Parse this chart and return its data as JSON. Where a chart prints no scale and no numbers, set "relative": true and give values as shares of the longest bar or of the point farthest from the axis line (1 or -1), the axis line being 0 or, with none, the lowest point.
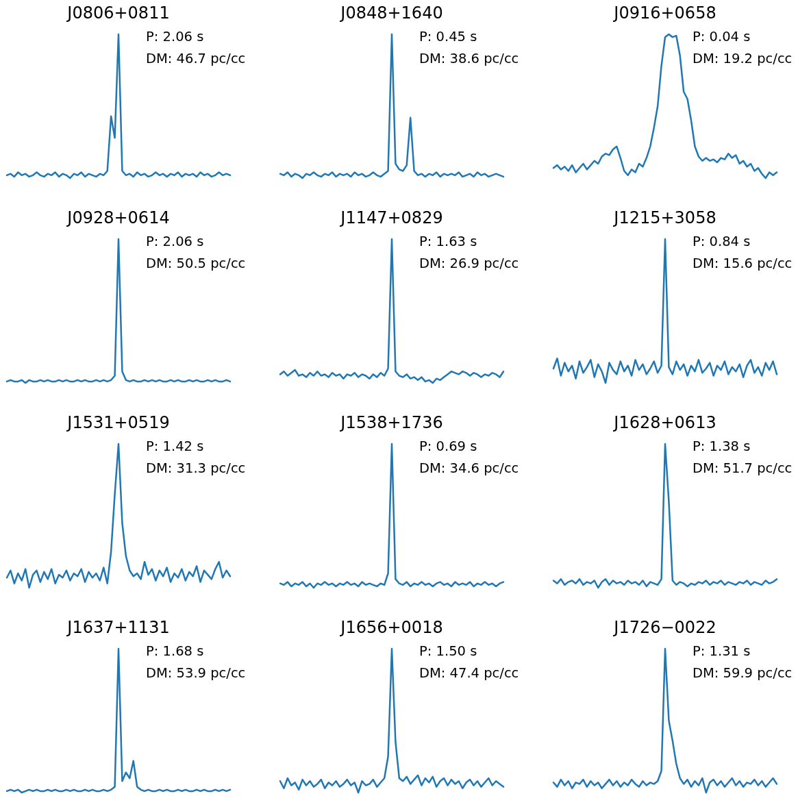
{
  "chart_data": [
    {
      "type": "line",
      "title": "J0806+0811",
      "annotations": [
        "P: 2.06 s",
        "DM: 46.7 pc/cc"
      ],
      "relative": true,
      "color": "#1f77b4",
      "categories": [
        null,
        null,
        null,
        null,
        null,
        null,
        null,
        null,
        null,
        null,
        null,
        null,
        null,
        null,
        null,
        null,
        null,
        null,
        null,
        null,
        null,
        null,
        null,
        null,
        null,
        null,
        null,
        null,
        null,
        null,
        null,
        null,
        null,
        null,
        null,
        null,
        null,
        null,
        null,
        null,
        null,
        null,
        null,
        null,
        null,
        null,
        null,
        null,
        null,
        null,
        null,
        null,
        null,
        null,
        null,
        null,
        null,
        null,
        null,
        null,
        null
      ],
      "values": [
        0.02,
        0.03,
        0.01,
        0.04,
        0.02,
        0.03,
        0.01,
        0.02,
        0.04,
        0.02,
        0.01,
        0.03,
        0.02,
        0.04,
        0.01,
        0.03,
        0.02,
        0.0,
        0.03,
        0.02,
        0.04,
        0.01,
        0.03,
        0.02,
        0.01,
        0.03,
        0.02,
        0.05,
        0.43,
        0.28,
        1,
        0.05,
        0.02,
        0.03,
        0.01,
        0.04,
        0.02,
        0.03,
        0.01,
        0.02,
        0.04,
        0.02,
        0.03,
        0.01,
        0.03,
        0.02,
        0.04,
        0.01,
        0.03,
        0.02,
        0.03,
        0.01,
        0.04,
        0.02,
        0.03,
        0.01,
        0.02,
        0.04,
        0.02,
        0.03,
        0.02
      ]
    },
    {
      "type": "line",
      "title": "J0848+1640",
      "annotations": [
        "P: 0.45 s",
        "DM: 38.6 pc/cc"
      ],
      "relative": true,
      "color": "#1f77b4",
      "categories": [
        null,
        null,
        null,
        null,
        null,
        null,
        null,
        null,
        null,
        null,
        null,
        null,
        null,
        null,
        null,
        null,
        null,
        null,
        null,
        null,
        null,
        null,
        null,
        null,
        null,
        null,
        null,
        null,
        null,
        null,
        null,
        null,
        null,
        null,
        null,
        null,
        null,
        null,
        null,
        null,
        null,
        null,
        null,
        null,
        null,
        null,
        null,
        null,
        null,
        null,
        null,
        null,
        null,
        null,
        null,
        null,
        null,
        null,
        null,
        null,
        null
      ],
      "values": [
        0.03,
        0.02,
        0.04,
        0.01,
        0.03,
        0.02,
        0.0,
        0.03,
        0.02,
        0.04,
        0.02,
        0.01,
        0.03,
        0.02,
        0.04,
        0.01,
        0.03,
        0.02,
        0.03,
        0.01,
        0.04,
        0.02,
        0.03,
        0.01,
        0.02,
        0.04,
        0.02,
        0.01,
        0.03,
        0.05,
        1,
        0.1,
        0.06,
        0.05,
        0.09,
        0.42,
        0.05,
        0.02,
        0.03,
        0.01,
        0.03,
        0.02,
        0.04,
        0.01,
        0.03,
        0.02,
        0.03,
        0.02,
        0.04,
        0.01,
        0.02,
        0.03,
        0.01,
        0.04,
        0.02,
        0.03,
        0.01,
        0.02,
        0.03,
        0.02,
        0.01
      ]
    },
    {
      "type": "line",
      "title": "J0916+0658",
      "annotations": [
        "P: 0.04 s",
        "DM: 19.2 pc/cc"
      ],
      "relative": true,
      "color": "#1f77b4",
      "categories": [
        null,
        null,
        null,
        null,
        null,
        null,
        null,
        null,
        null,
        null,
        null,
        null,
        null,
        null,
        null,
        null,
        null,
        null,
        null,
        null,
        null,
        null,
        null,
        null,
        null,
        null,
        null,
        null,
        null,
        null,
        null,
        null,
        null,
        null,
        null,
        null,
        null,
        null,
        null,
        null,
        null,
        null,
        null,
        null,
        null,
        null,
        null,
        null,
        null,
        null,
        null,
        null,
        null,
        null,
        null,
        null,
        null,
        null,
        null,
        null,
        null
      ],
      "values": [
        0.07,
        0.09,
        0.06,
        0.08,
        0.05,
        0.09,
        0.04,
        0.07,
        0.1,
        0.06,
        0.09,
        0.12,
        0.1,
        0.15,
        0.17,
        0.16,
        0.2,
        0.22,
        0.14,
        0.05,
        0.02,
        0.06,
        0.04,
        0.1,
        0.08,
        0.14,
        0.22,
        0.35,
        0.5,
        0.78,
        0.98,
        1,
        0.98,
        0.99,
        0.85,
        0.6,
        0.55,
        0.4,
        0.22,
        0.15,
        0.12,
        0.14,
        0.12,
        0.13,
        0.11,
        0.14,
        0.13,
        0.17,
        0.14,
        0.16,
        0.1,
        0.12,
        0.08,
        0.1,
        0.05,
        0.07,
        0.03,
        0.0,
        0.04,
        0.02,
        0.04
      ]
    },
    {
      "type": "line",
      "title": "J0928+0614",
      "annotations": [
        "P: 2.06 s",
        "DM: 50.5 pc/cc"
      ],
      "relative": true,
      "color": "#1f77b4",
      "categories": [
        null,
        null,
        null,
        null,
        null,
        null,
        null,
        null,
        null,
        null,
        null,
        null,
        null,
        null,
        null,
        null,
        null,
        null,
        null,
        null,
        null,
        null,
        null,
        null,
        null,
        null,
        null,
        null,
        null,
        null,
        null,
        null,
        null,
        null,
        null,
        null,
        null,
        null,
        null,
        null,
        null,
        null,
        null,
        null,
        null,
        null,
        null,
        null,
        null,
        null,
        null,
        null,
        null,
        null,
        null,
        null,
        null,
        null,
        null,
        null,
        null
      ],
      "values": [
        0.01,
        0.02,
        0.01,
        0.01,
        0.02,
        0.0,
        0.02,
        0.01,
        0.01,
        0.02,
        0.01,
        0.02,
        0.01,
        0.01,
        0.02,
        0.01,
        0.02,
        0.01,
        0.01,
        0.02,
        0.01,
        0.02,
        0.01,
        0.01,
        0.02,
        0.01,
        0.02,
        0.01,
        0.02,
        0.05,
        1,
        0.08,
        0.02,
        0.01,
        0.02,
        0.01,
        0.01,
        0.02,
        0.01,
        0.02,
        0.01,
        0.02,
        0.01,
        0.01,
        0.02,
        0.01,
        0.02,
        0.01,
        0.01,
        0.02,
        0.01,
        0.02,
        0.01,
        0.01,
        0.02,
        0.01,
        0.02,
        0.01,
        0.01,
        0.02,
        0.01
      ]
    },
    {
      "type": "line",
      "title": "J1147+0829",
      "annotations": [
        "P: 1.63 s",
        "DM: 26.9 pc/cc"
      ],
      "relative": true,
      "color": "#1f77b4",
      "categories": [
        null,
        null,
        null,
        null,
        null,
        null,
        null,
        null,
        null,
        null,
        null,
        null,
        null,
        null,
        null,
        null,
        null,
        null,
        null,
        null,
        null,
        null,
        null,
        null,
        null,
        null,
        null,
        null,
        null,
        null,
        null,
        null,
        null,
        null,
        null,
        null,
        null,
        null,
        null,
        null,
        null,
        null,
        null,
        null,
        null,
        null,
        null,
        null,
        null,
        null,
        null,
        null,
        null,
        null,
        null,
        null,
        null,
        null,
        null,
        null,
        null
      ],
      "values": [
        0.06,
        0.08,
        0.05,
        0.07,
        0.09,
        0.05,
        0.06,
        0.04,
        0.07,
        0.05,
        0.08,
        0.05,
        0.06,
        0.04,
        0.07,
        0.05,
        0.06,
        0.03,
        0.06,
        0.05,
        0.07,
        0.04,
        0.06,
        0.05,
        0.03,
        0.06,
        0.04,
        0.07,
        0.05,
        0.1,
        1,
        0.08,
        0.05,
        0.04,
        0.06,
        0.03,
        0.04,
        0.02,
        0.04,
        0.01,
        0.02,
        0.0,
        0.03,
        0.02,
        0.04,
        0.06,
        0.08,
        0.07,
        0.06,
        0.08,
        0.07,
        0.05,
        0.07,
        0.06,
        0.04,
        0.06,
        0.05,
        0.07,
        0.06,
        0.04,
        0.08
      ]
    },
    {
      "type": "line",
      "title": "J1215+3058",
      "annotations": [
        "P: 0.84 s",
        "DM: 15.6 pc/cc"
      ],
      "relative": true,
      "color": "#1f77b4",
      "categories": [
        null,
        null,
        null,
        null,
        null,
        null,
        null,
        null,
        null,
        null,
        null,
        null,
        null,
        null,
        null,
        null,
        null,
        null,
        null,
        null,
        null,
        null,
        null,
        null,
        null,
        null,
        null,
        null,
        null,
        null,
        null,
        null,
        null,
        null,
        null,
        null,
        null,
        null,
        null,
        null,
        null,
        null,
        null,
        null,
        null,
        null,
        null,
        null,
        null,
        null,
        null,
        null,
        null,
        null,
        null,
        null,
        null,
        null,
        null,
        null,
        null
      ],
      "values": [
        0.1,
        0.17,
        0.05,
        0.14,
        0.08,
        0.12,
        0.03,
        0.15,
        0.07,
        0.11,
        0.16,
        0.04,
        0.13,
        0.08,
        0.0,
        0.14,
        0.09,
        0.06,
        0.15,
        0.08,
        0.12,
        0.05,
        0.16,
        0.09,
        0.13,
        0.06,
        0.1,
        0.15,
        0.07,
        0.12,
        1,
        0.11,
        0.06,
        0.15,
        0.09,
        0.13,
        0.05,
        0.12,
        0.08,
        0.16,
        0.07,
        0.1,
        0.14,
        0.05,
        0.12,
        0.09,
        0.15,
        0.06,
        0.11,
        0.08,
        0.13,
        0.04,
        0.12,
        0.16,
        0.07,
        0.11,
        0.05,
        0.14,
        0.09,
        0.15,
        0.06
      ]
    },
    {
      "type": "line",
      "title": "J1531+0519",
      "annotations": [
        "P: 1.42 s",
        "DM: 31.3 pc/cc"
      ],
      "relative": true,
      "color": "#1f77b4",
      "categories": [
        null,
        null,
        null,
        null,
        null,
        null,
        null,
        null,
        null,
        null,
        null,
        null,
        null,
        null,
        null,
        null,
        null,
        null,
        null,
        null,
        null,
        null,
        null,
        null,
        null,
        null,
        null,
        null,
        null,
        null,
        null,
        null,
        null,
        null,
        null,
        null,
        null,
        null,
        null,
        null,
        null,
        null,
        null,
        null,
        null,
        null,
        null,
        null,
        null,
        null,
        null,
        null,
        null,
        null,
        null,
        null,
        null,
        null,
        null,
        null,
        null
      ],
      "values": [
        0.07,
        0.12,
        0.03,
        0.1,
        0.05,
        0.13,
        0.0,
        0.09,
        0.12,
        0.04,
        0.11,
        0.06,
        0.13,
        0.03,
        0.09,
        0.07,
        0.12,
        0.05,
        0.1,
        0.08,
        0.13,
        0.04,
        0.11,
        0.07,
        0.1,
        0.05,
        0.14,
        0.03,
        0.25,
        0.65,
        1,
        0.45,
        0.22,
        0.12,
        0.08,
        0.1,
        0.06,
        0.18,
        0.09,
        0.13,
        0.05,
        0.12,
        0.08,
        0.14,
        0.04,
        0.1,
        0.07,
        0.13,
        0.05,
        0.11,
        0.08,
        0.15,
        0.04,
        0.12,
        0.09,
        0.06,
        0.13,
        0.18,
        0.07,
        0.12,
        0.08
      ]
    },
    {
      "type": "line",
      "title": "J1538+1736",
      "annotations": [
        "P: 0.69 s",
        "DM: 34.6 pc/cc"
      ],
      "relative": true,
      "color": "#1f77b4",
      "categories": [
        null,
        null,
        null,
        null,
        null,
        null,
        null,
        null,
        null,
        null,
        null,
        null,
        null,
        null,
        null,
        null,
        null,
        null,
        null,
        null,
        null,
        null,
        null,
        null,
        null,
        null,
        null,
        null,
        null,
        null,
        null,
        null,
        null,
        null,
        null,
        null,
        null,
        null,
        null,
        null,
        null,
        null,
        null,
        null,
        null,
        null,
        null,
        null,
        null,
        null,
        null,
        null,
        null,
        null,
        null,
        null,
        null,
        null,
        null,
        null,
        null
      ],
      "values": [
        0.03,
        0.02,
        0.04,
        0.01,
        0.03,
        0.02,
        0.04,
        0.01,
        0.03,
        0.0,
        0.03,
        0.02,
        0.04,
        0.02,
        0.03,
        0.01,
        0.03,
        0.02,
        0.04,
        0.02,
        0.03,
        0.01,
        0.04,
        0.02,
        0.03,
        0.02,
        0.01,
        0.03,
        0.02,
        0.1,
        1,
        0.06,
        0.03,
        0.02,
        0.04,
        0.01,
        0.03,
        0.02,
        0.04,
        0.02,
        0.03,
        0.01,
        0.03,
        0.04,
        0.02,
        0.03,
        0.01,
        0.04,
        0.02,
        0.03,
        0.02,
        0.04,
        0.01,
        0.03,
        0.02,
        0.04,
        0.02,
        0.03,
        0.01,
        0.03,
        0.04
      ]
    },
    {
      "type": "line",
      "title": "J1628+0613",
      "annotations": [
        "P: 1.38 s",
        "DM: 51.7 pc/cc"
      ],
      "relative": true,
      "color": "#1f77b4",
      "categories": [
        null,
        null,
        null,
        null,
        null,
        null,
        null,
        null,
        null,
        null,
        null,
        null,
        null,
        null,
        null,
        null,
        null,
        null,
        null,
        null,
        null,
        null,
        null,
        null,
        null,
        null,
        null,
        null,
        null,
        null,
        null,
        null,
        null,
        null,
        null,
        null,
        null,
        null,
        null,
        null,
        null,
        null,
        null,
        null,
        null,
        null,
        null,
        null,
        null,
        null,
        null,
        null,
        null,
        null,
        null,
        null,
        null,
        null,
        null,
        null,
        null
      ],
      "values": [
        0.05,
        0.03,
        0.06,
        0.02,
        0.04,
        0.05,
        0.03,
        0.06,
        0.02,
        0.04,
        0.03,
        0.05,
        0.0,
        0.04,
        0.06,
        0.02,
        0.05,
        0.03,
        0.04,
        0.02,
        0.05,
        0.03,
        0.04,
        0.02,
        0.05,
        0.01,
        0.04,
        0.03,
        0.02,
        0.06,
        1,
        0.6,
        0.05,
        0.02,
        0.04,
        0.03,
        0.01,
        0.03,
        0.02,
        0.04,
        0.03,
        0.05,
        0.02,
        0.04,
        0.03,
        0.05,
        0.02,
        0.04,
        0.03,
        0.02,
        0.04,
        0.03,
        0.05,
        0.02,
        0.04,
        0.03,
        0.02,
        0.05,
        0.03,
        0.04,
        0.06
      ]
    },
    {
      "type": "line",
      "title": "J1637+1131",
      "annotations": [
        "P: 1.68 s",
        "DM: 53.9 pc/cc"
      ],
      "relative": true,
      "color": "#1f77b4",
      "categories": [
        null,
        null,
        null,
        null,
        null,
        null,
        null,
        null,
        null,
        null,
        null,
        null,
        null,
        null,
        null,
        null,
        null,
        null,
        null,
        null,
        null,
        null,
        null,
        null,
        null,
        null,
        null,
        null,
        null,
        null,
        null,
        null,
        null,
        null,
        null,
        null,
        null,
        null,
        null,
        null,
        null,
        null,
        null,
        null,
        null,
        null,
        null,
        null,
        null,
        null,
        null,
        null,
        null,
        null,
        null,
        null,
        null,
        null,
        null,
        null,
        null
      ],
      "values": [
        0.01,
        0.02,
        0.01,
        0.02,
        0.0,
        0.01,
        0.02,
        0.01,
        0.02,
        0.01,
        0.01,
        0.02,
        0.01,
        0.02,
        0.01,
        0.01,
        0.02,
        0.01,
        0.02,
        0.01,
        0.01,
        0.02,
        0.01,
        0.02,
        0.01,
        0.01,
        0.02,
        0.01,
        0.02,
        0.04,
        1,
        0.08,
        0.14,
        0.1,
        0.22,
        0.04,
        0.02,
        0.01,
        0.02,
        0.01,
        0.01,
        0.02,
        0.01,
        0.02,
        0.01,
        0.01,
        0.02,
        0.01,
        0.02,
        0.01,
        0.01,
        0.02,
        0.01,
        0.02,
        0.01,
        0.01,
        0.02,
        0.01,
        0.02,
        0.01,
        0.02
      ]
    },
    {
      "type": "line",
      "title": "J1656+0018",
      "annotations": [
        "P: 1.50 s",
        "DM: 47.4 pc/cc"
      ],
      "relative": true,
      "color": "#1f77b4",
      "categories": [
        null,
        null,
        null,
        null,
        null,
        null,
        null,
        null,
        null,
        null,
        null,
        null,
        null,
        null,
        null,
        null,
        null,
        null,
        null,
        null,
        null,
        null,
        null,
        null,
        null,
        null,
        null,
        null,
        null,
        null,
        null,
        null,
        null,
        null,
        null,
        null,
        null,
        null,
        null,
        null,
        null,
        null,
        null,
        null,
        null,
        null,
        null,
        null,
        null,
        null,
        null,
        null,
        null,
        null,
        null,
        null,
        null,
        null,
        null,
        null,
        null
      ],
      "values": [
        0.08,
        0.03,
        0.1,
        0.05,
        0.07,
        0.02,
        0.09,
        0.05,
        0.08,
        0.04,
        0.06,
        0.09,
        0.03,
        0.07,
        0.05,
        0.08,
        0.04,
        0.06,
        0.09,
        0.05,
        0.07,
        0.0,
        0.08,
        0.05,
        0.06,
        0.09,
        0.04,
        0.07,
        0.1,
        0.25,
        1,
        0.35,
        0.1,
        0.08,
        0.11,
        0.06,
        0.09,
        0.12,
        0.05,
        0.1,
        0.07,
        0.11,
        0.04,
        0.08,
        0.1,
        0.05,
        0.09,
        0.06,
        0.08,
        0.03,
        0.07,
        0.09,
        0.05,
        0.08,
        0.04,
        0.07,
        0.1,
        0.05,
        0.08,
        0.06,
        0.04
      ]
    },
    {
      "type": "line",
      "title": "J1726−0022",
      "annotations": [
        "P: 1.31 s",
        "DM: 59.9 pc/cc"
      ],
      "relative": true,
      "color": "#1f77b4",
      "categories": [
        null,
        null,
        null,
        null,
        null,
        null,
        null,
        null,
        null,
        null,
        null,
        null,
        null,
        null,
        null,
        null,
        null,
        null,
        null,
        null,
        null,
        null,
        null,
        null,
        null,
        null,
        null,
        null,
        null,
        null,
        null,
        null,
        null,
        null,
        null,
        null,
        null,
        null,
        null,
        null,
        null,
        null,
        null,
        null,
        null,
        null,
        null,
        null,
        null,
        null,
        null,
        null,
        null,
        null,
        null,
        null,
        null,
        null,
        null,
        null,
        null
      ],
      "values": [
        0.07,
        0.04,
        0.09,
        0.05,
        0.08,
        0.03,
        0.07,
        0.06,
        0.09,
        0.04,
        0.08,
        0.05,
        0.07,
        0.03,
        0.06,
        0.09,
        0.05,
        0.08,
        0.04,
        0.07,
        0.05,
        0.09,
        0.06,
        0.04,
        0.08,
        0.05,
        0.07,
        0.06,
        0.08,
        0.15,
        1,
        0.5,
        0.36,
        0.2,
        0.1,
        0.06,
        0.09,
        0.04,
        0.08,
        0.05,
        0.1,
        0.0,
        0.07,
        0.09,
        0.05,
        0.08,
        0.04,
        0.07,
        0.1,
        0.05,
        0.08,
        0.04,
        0.07,
        0.06,
        0.09,
        0.05,
        0.08,
        0.04,
        0.07,
        0.1,
        0.06
      ]
    }
  ]
}
